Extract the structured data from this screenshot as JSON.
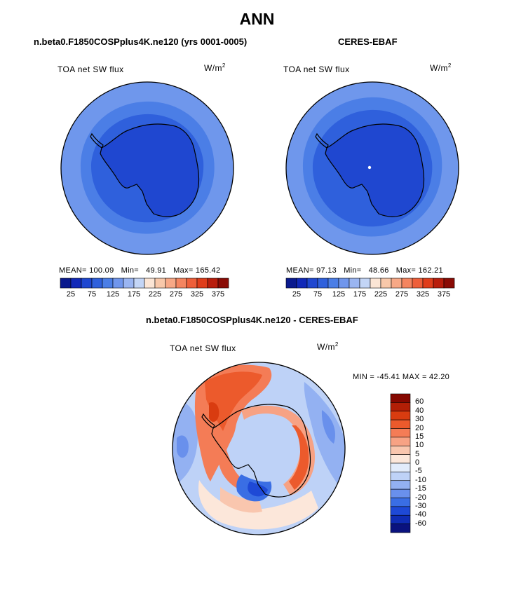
{
  "title": "ANN",
  "colors": {
    "pal_abs": [
      "#0a1a8e",
      "#1129b8",
      "#1f47d0",
      "#2f60dc",
      "#4b7ee6",
      "#7096ec",
      "#9ab5f1",
      "#c3d5f6",
      "#fbe5d5",
      "#f8c8aa",
      "#f7a886",
      "#f48560",
      "#ee5f3a",
      "#df3d1b",
      "#b81d0c",
      "#8a0b05"
    ],
    "pal_diff": [
      "#0a127e",
      "#0f2cb4",
      "#1e49d6",
      "#3a6ee4",
      "#6990ec",
      "#93b1f2",
      "#bed2f7",
      "#e2ecfb",
      "#fce7da",
      "#f9c6ae",
      "#f7a284",
      "#f47c56",
      "#ec5a2c",
      "#d93c10",
      "#b21f06",
      "#850800"
    ],
    "ocean_outer": "#6f97ec",
    "ocean_mid": "#4b7ee6",
    "ocean_inner": "#2f60dc",
    "land": "#1f47d0"
  },
  "panels": [
    {
      "title": "n.beta0.F1850COSPplus4K.ne120 (yrs 0001-0005)",
      "field": "TOA net SW flux",
      "units": "W/m",
      "units_sup": "2",
      "stats": {
        "mean_label": "MEAN=",
        "mean": "100.09",
        "min_label": "Min=",
        "min": "49.91",
        "max_label": "Max=",
        "max": "165.42"
      }
    },
    {
      "title": "CERES-EBAF",
      "field": "TOA net SW flux",
      "units": "W/m",
      "units_sup": "2",
      "stats": {
        "mean_label": "MEAN=",
        "mean": "97.13",
        "min_label": "Min=",
        "min": "48.66",
        "max_label": "Max=",
        "max": "162.21"
      }
    }
  ],
  "diff_panel": {
    "title": "n.beta0.F1850COSPplus4K.ne120 - CERES-EBAF",
    "field": "TOA net SW flux",
    "units": "W/m",
    "units_sup": "2",
    "minmax": "MIN = -45.41 MAX =  42.20"
  },
  "chart_data": [
    {
      "type": "heatmap",
      "projection": "south-polar-stereographic",
      "title": "n.beta0.F1850COSPplus4K.ne120 (yrs 0001-0005)",
      "variable": "TOA net SW flux",
      "units": "W/m^2",
      "mean": 100.09,
      "min": 49.91,
      "max": 165.42,
      "colorbar_ticks": [
        "25",
        "75",
        "125",
        "175",
        "225",
        "275",
        "325",
        "375"
      ],
      "colorbar_bins": 16
    },
    {
      "type": "heatmap",
      "projection": "south-polar-stereographic",
      "title": "CERES-EBAF",
      "variable": "TOA net SW flux",
      "units": "W/m^2",
      "mean": 97.13,
      "min": 48.66,
      "max": 162.21,
      "colorbar_ticks": [
        "25",
        "75",
        "125",
        "175",
        "225",
        "275",
        "325",
        "375"
      ],
      "colorbar_bins": 16
    },
    {
      "type": "heatmap",
      "projection": "south-polar-stereographic",
      "title": "n.beta0.F1850COSPplus4K.ne120 - CERES-EBAF",
      "variable": "TOA net SW flux",
      "units": "W/m^2",
      "min": -45.41,
      "max": 42.2,
      "colorbar_levels": [
        "60",
        "40",
        "30",
        "20",
        "15",
        "10",
        "5",
        "0",
        "-5",
        "-10",
        "-15",
        "-20",
        "-30",
        "-40",
        "-60"
      ]
    }
  ]
}
